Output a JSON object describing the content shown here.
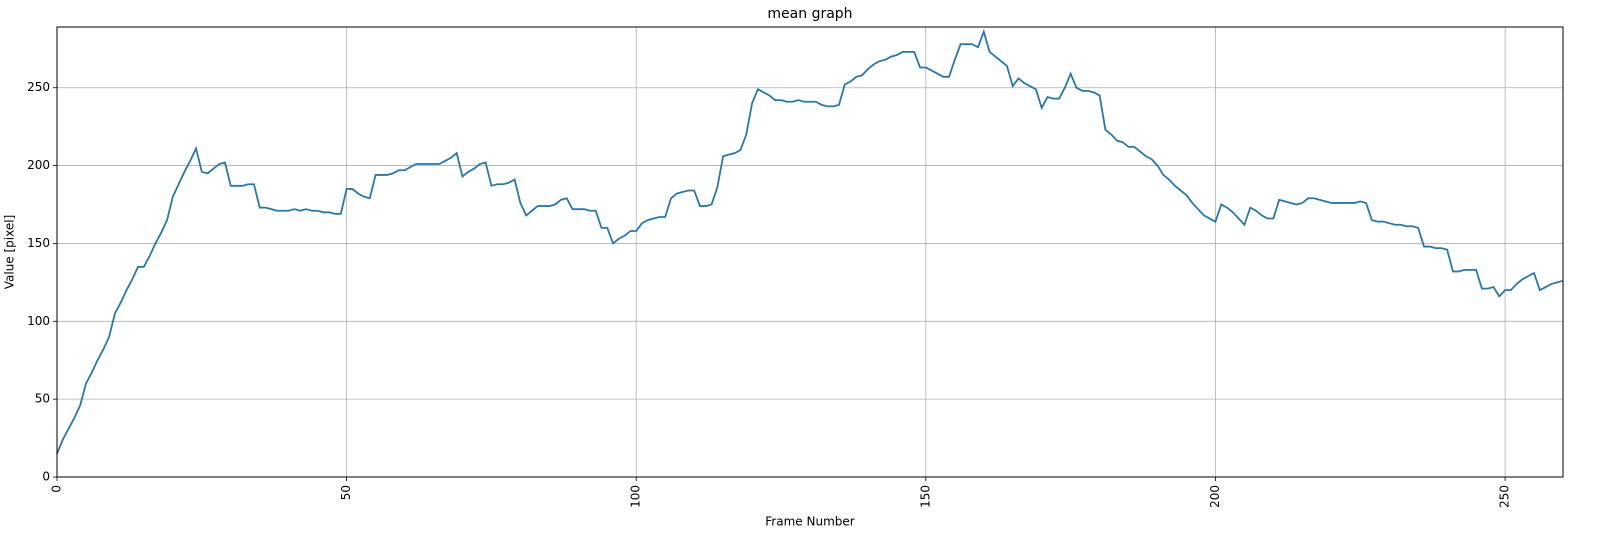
{
  "chart_data": {
    "type": "line",
    "title": "mean graph",
    "x_label": "Frame Number",
    "y_label": "Value [pixel]",
    "xlim": [
      0,
      260
    ],
    "ylim": [
      0,
      289
    ],
    "xticks": [
      0,
      50,
      100,
      150,
      200,
      250
    ],
    "yticks": [
      0,
      50,
      100,
      150,
      200,
      250
    ],
    "grid": true,
    "x": [
      0,
      1,
      2,
      3,
      4,
      5,
      6,
      7,
      8,
      9,
      10,
      11,
      12,
      13,
      14,
      15,
      16,
      17,
      18,
      19,
      20,
      21,
      22,
      23,
      24,
      25,
      26,
      27,
      28,
      29,
      30,
      31,
      32,
      33,
      34,
      35,
      36,
      37,
      38,
      39,
      40,
      41,
      42,
      43,
      44,
      45,
      46,
      47,
      48,
      49,
      50,
      51,
      52,
      53,
      54,
      55,
      56,
      57,
      58,
      59,
      60,
      61,
      62,
      63,
      64,
      65,
      66,
      67,
      68,
      69,
      70,
      71,
      72,
      73,
      74,
      75,
      76,
      77,
      78,
      79,
      80,
      81,
      82,
      83,
      84,
      85,
      86,
      87,
      88,
      89,
      90,
      91,
      92,
      93,
      94,
      95,
      96,
      97,
      98,
      99,
      100,
      101,
      102,
      103,
      104,
      105,
      106,
      107,
      108,
      109,
      110,
      111,
      112,
      113,
      114,
      115,
      116,
      117,
      118,
      119,
      120,
      121,
      122,
      123,
      124,
      125,
      126,
      127,
      128,
      129,
      130,
      131,
      132,
      133,
      134,
      135,
      136,
      137,
      138,
      139,
      140,
      141,
      142,
      143,
      144,
      145,
      146,
      147,
      148,
      149,
      150,
      151,
      152,
      153,
      154,
      155,
      156,
      157,
      158,
      159,
      160,
      161,
      162,
      163,
      164,
      165,
      166,
      167,
      168,
      169,
      170,
      171,
      172,
      173,
      174,
      175,
      176,
      177,
      178,
      179,
      180,
      181,
      182,
      183,
      184,
      185,
      186,
      187,
      188,
      189,
      190,
      191,
      192,
      193,
      194,
      195,
      196,
      197,
      198,
      199,
      200,
      201,
      202,
      203,
      204,
      205,
      206,
      207,
      208,
      209,
      210,
      211,
      212,
      213,
      214,
      215,
      216,
      217,
      218,
      219,
      220,
      221,
      222,
      223,
      224,
      225,
      226,
      227,
      228,
      229,
      230,
      231,
      232,
      233,
      234,
      235,
      236,
      237,
      238,
      239,
      240,
      241,
      242,
      243,
      244,
      245,
      246,
      247,
      248,
      249,
      250,
      251,
      252,
      253,
      254,
      255,
      256,
      257,
      258,
      259,
      260
    ],
    "series": [
      {
        "color": "#2a77a8",
        "values": [
          15,
          24,
          31,
          38,
          46,
          60,
          67,
          75,
          82,
          90,
          105,
          112,
          120,
          127,
          135,
          135,
          142,
          150,
          157,
          165,
          180,
          188,
          196,
          203,
          211,
          196,
          195,
          198,
          201,
          202,
          187,
          187,
          187,
          188,
          188,
          173,
          173,
          172,
          171,
          171,
          171,
          172,
          171,
          172,
          171,
          171,
          170,
          170,
          169,
          169,
          185,
          185,
          182,
          180,
          179,
          194,
          194,
          194,
          195,
          197,
          197,
          199,
          201,
          201,
          201,
          201,
          201,
          203,
          205,
          208,
          193,
          196,
          198,
          201,
          202,
          187,
          188,
          188,
          189,
          191,
          176,
          168,
          171,
          174,
          174,
          174,
          175,
          178,
          179,
          172,
          172,
          172,
          171,
          171,
          160,
          160,
          150,
          153,
          155,
          158,
          158,
          163,
          165,
          166,
          167,
          167,
          179,
          182,
          183,
          184,
          184,
          174,
          174,
          175,
          186,
          206,
          207,
          208,
          210,
          220,
          240,
          249,
          247,
          245,
          242,
          242,
          241,
          241,
          242,
          241,
          241,
          241,
          239,
          238,
          238,
          239,
          252,
          254,
          257,
          258,
          262,
          265,
          267,
          268,
          270,
          271,
          273,
          273,
          273,
          263,
          263,
          261,
          259,
          257,
          257,
          268,
          278,
          278,
          278,
          276,
          286,
          273,
          270,
          267,
          264,
          251,
          256,
          253,
          251,
          249,
          237,
          244,
          243,
          243,
          250,
          259,
          250,
          248,
          248,
          247,
          245,
          223,
          220,
          216,
          215,
          212,
          212,
          209,
          206,
          204,
          200,
          194,
          191,
          187,
          184,
          181,
          176,
          172,
          168,
          166,
          164,
          175,
          173,
          170,
          166,
          162,
          173,
          171,
          168,
          166,
          166,
          178,
          177,
          176,
          175,
          176,
          179,
          179,
          178,
          177,
          176,
          176,
          176,
          176,
          176,
          177,
          176,
          165,
          164,
          164,
          163,
          162,
          162,
          161,
          161,
          160,
          148,
          148,
          147,
          147,
          146,
          132,
          132,
          133,
          133,
          133,
          121,
          121,
          122,
          116,
          120,
          120,
          124,
          127,
          129,
          131,
          120,
          122,
          124,
          125,
          126
        ]
      }
    ]
  }
}
